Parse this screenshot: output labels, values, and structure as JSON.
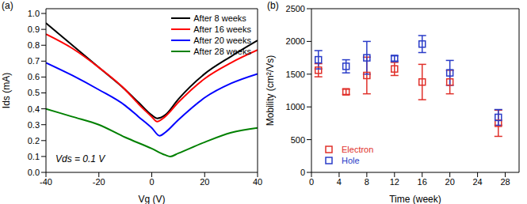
{
  "chart_data": [
    {
      "type": "line",
      "panel_label": "(a)",
      "x_label": "Vg (V)",
      "y_label": "Ids (mA)",
      "annotation": "Vds = 0.1 V",
      "xlim": [
        -40,
        40
      ],
      "xticks": [
        -40,
        -20,
        0,
        20,
        40
      ],
      "ylim": [
        0,
        1.03
      ],
      "yticks": [
        {
          "value": 0,
          "label": "0.0"
        },
        0.1,
        0.2,
        0.3,
        0.4,
        0.5,
        0.6,
        0.7,
        0.8,
        0.9,
        {
          "value": 1,
          "label": "1.0"
        }
      ],
      "legend": "upper right",
      "series": [
        {
          "name": "After 8 weeks",
          "color": "#000000",
          "x": [
            -40,
            -30,
            -20,
            -10,
            -5,
            0,
            2,
            5,
            10,
            20,
            30,
            40
          ],
          "values": [
            0.94,
            0.8,
            0.66,
            0.52,
            0.44,
            0.36,
            0.34,
            0.36,
            0.46,
            0.62,
            0.73,
            0.83
          ]
        },
        {
          "name": "After 16 weeks",
          "color": "#ff0000",
          "x": [
            -40,
            -30,
            -20,
            -10,
            -5,
            0,
            2,
            5,
            10,
            20,
            30,
            40
          ],
          "values": [
            0.87,
            0.78,
            0.66,
            0.52,
            0.43,
            0.35,
            0.32,
            0.35,
            0.44,
            0.59,
            0.69,
            0.77
          ]
        },
        {
          "name": "After 20 weeks",
          "color": "#0000ff",
          "x": [
            -40,
            -30,
            -20,
            -10,
            -5,
            0,
            3,
            5,
            10,
            20,
            30,
            40
          ],
          "values": [
            0.69,
            0.61,
            0.52,
            0.42,
            0.35,
            0.28,
            0.23,
            0.25,
            0.33,
            0.47,
            0.56,
            0.62
          ]
        },
        {
          "name": "After 28 weeks",
          "color": "#008000",
          "x": [
            -40,
            -30,
            -20,
            -10,
            0,
            5,
            7,
            10,
            20,
            30,
            40
          ],
          "values": [
            0.4,
            0.35,
            0.3,
            0.22,
            0.15,
            0.11,
            0.1,
            0.12,
            0.19,
            0.25,
            0.28
          ]
        }
      ]
    },
    {
      "type": "scatter",
      "panel_label": "(b)",
      "x_label": "Time (week)",
      "y_label": "Mobility (cm²/Vs)",
      "xlim": [
        0,
        30
      ],
      "xticks": [
        0,
        4,
        8,
        12,
        16,
        20,
        24,
        28
      ],
      "ylim": [
        0,
        2500
      ],
      "yticks": [
        0,
        500,
        1000,
        1500,
        2000,
        2500
      ],
      "legend": "lower left",
      "series": [
        {
          "name": "Electron",
          "color": "#e0302a",
          "marker": "square",
          "x": [
            1,
            5,
            8,
            12,
            16,
            20,
            27
          ],
          "values": [
            1560,
            1230,
            1480,
            1580,
            1380,
            1380,
            750
          ],
          "error": [
            100,
            40,
            280,
            100,
            270,
            180,
            200
          ]
        },
        {
          "name": "Hole",
          "color": "#2a3cc8",
          "marker": "square",
          "x": [
            1,
            5,
            8,
            12,
            16,
            20,
            27
          ],
          "values": [
            1720,
            1620,
            1750,
            1740,
            1960,
            1520,
            840
          ],
          "error": [
            140,
            100,
            250,
            40,
            130,
            190,
            120
          ]
        }
      ]
    }
  ]
}
